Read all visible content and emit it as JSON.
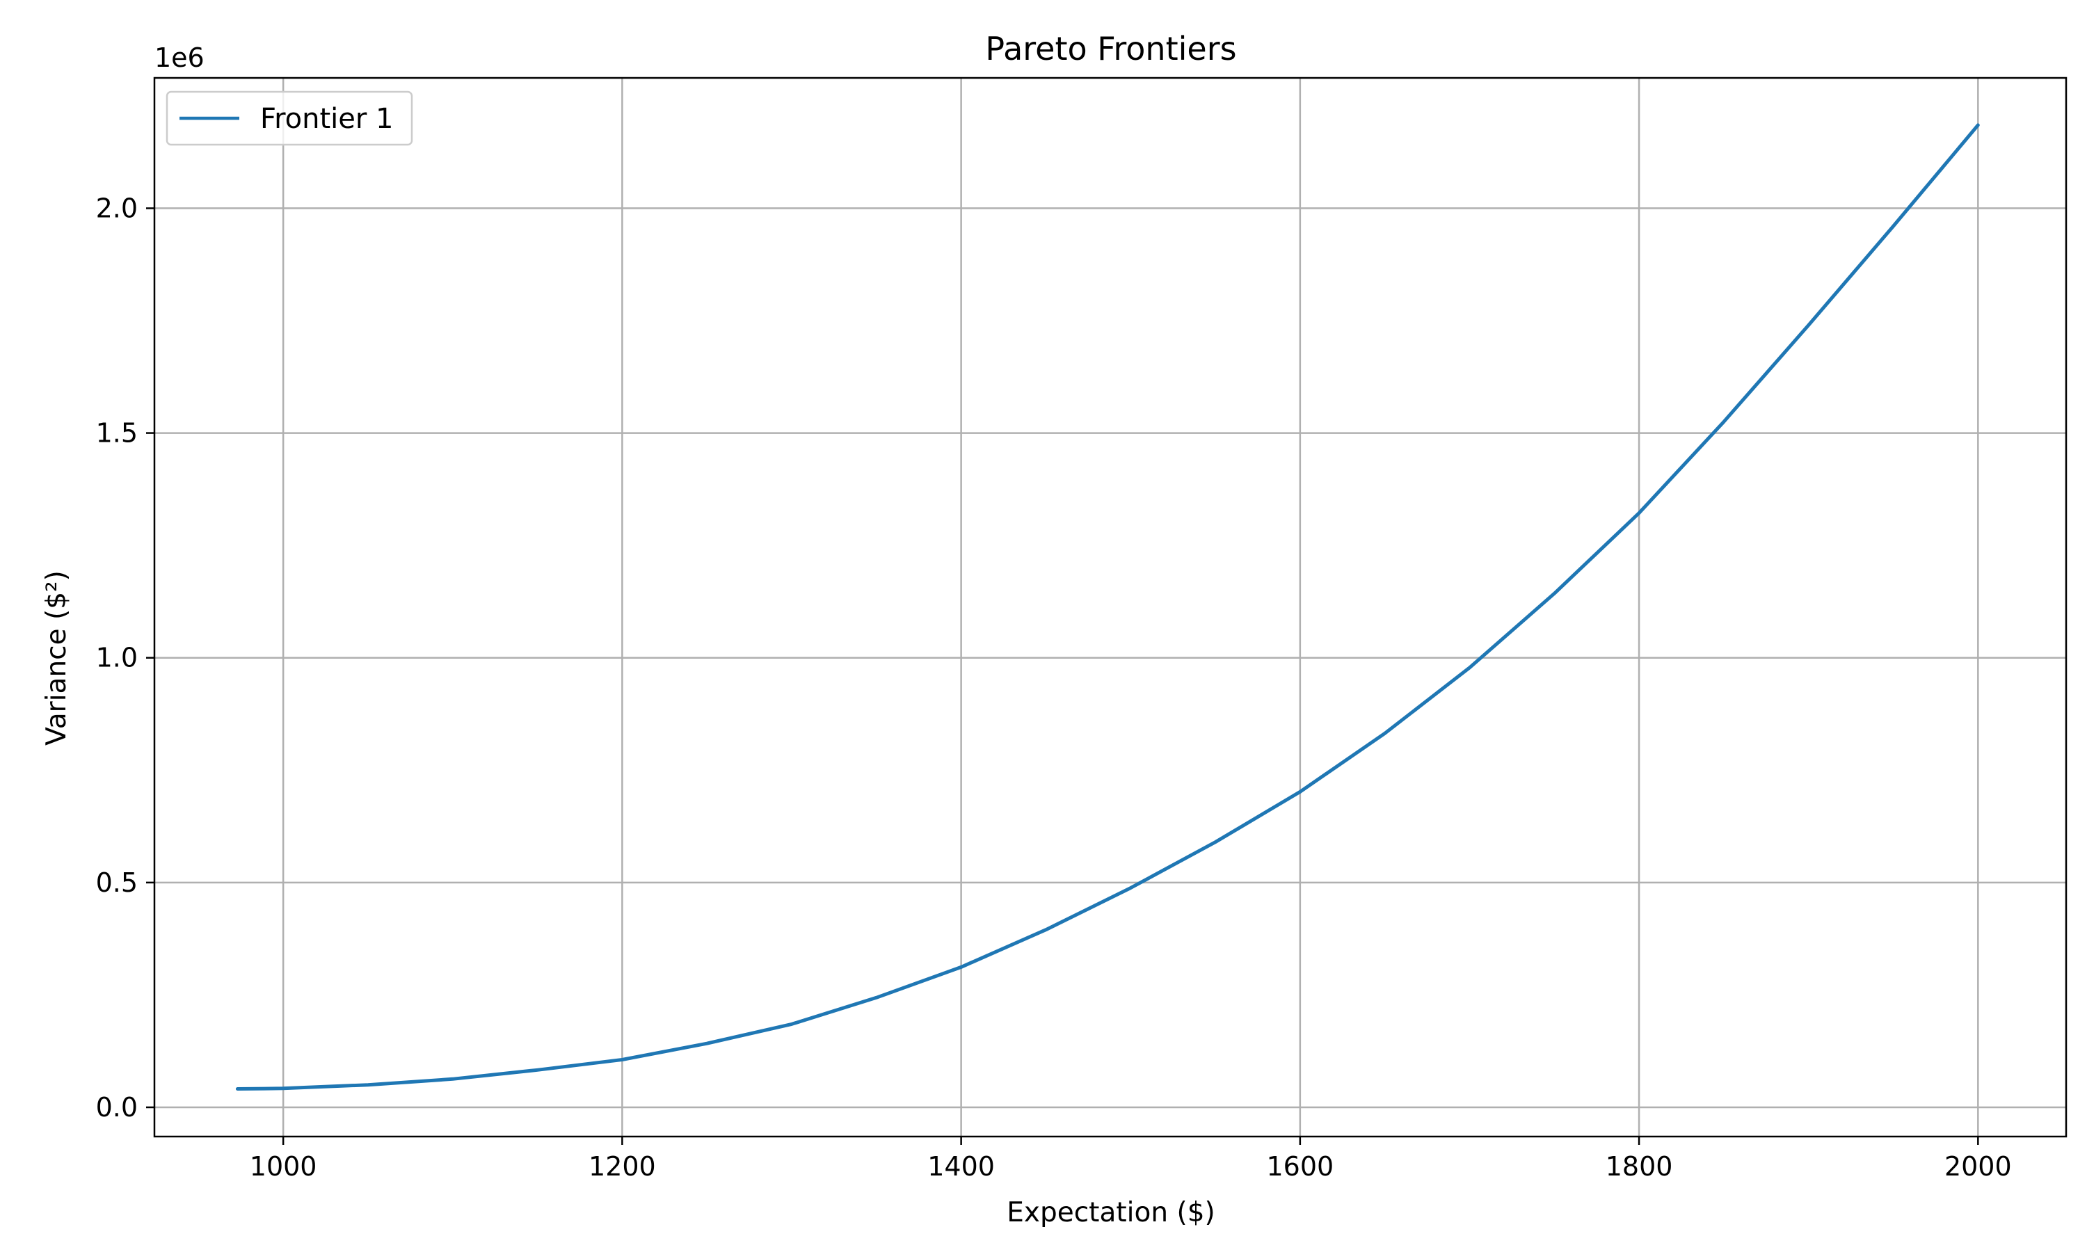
{
  "chart_data": {
    "type": "line",
    "title": "Pareto Frontiers",
    "xlabel": "Expectation ($)",
    "ylabel": "Variance ($²)",
    "y_scale_label": "1e6",
    "y_multiplier": 1000000,
    "xlim": [
      924,
      2052
    ],
    "ylim": [
      -0.065,
      2.29
    ],
    "x_ticks": [
      1000,
      1200,
      1400,
      1600,
      1800,
      2000
    ],
    "x_tick_labels": [
      "1000",
      "1200",
      "1400",
      "1600",
      "1800",
      "2000"
    ],
    "y_ticks": [
      0.0,
      0.5,
      1.0,
      1.5,
      2.0
    ],
    "y_tick_labels": [
      "0.0",
      "0.5",
      "1.0",
      "1.5",
      "2.0"
    ],
    "grid": true,
    "legend_position": "upper left",
    "series": [
      {
        "name": "Frontier 1",
        "color": "#1f77b4",
        "x": [
          973,
          1000,
          1050,
          1100,
          1150,
          1200,
          1250,
          1300,
          1350,
          1400,
          1450,
          1500,
          1550,
          1600,
          1650,
          1700,
          1750,
          1800,
          1850,
          1900,
          1950,
          2000
        ],
        "y": [
          0.041,
          0.042,
          0.05,
          0.063,
          0.083,
          0.106,
          0.142,
          0.185,
          0.244,
          0.312,
          0.395,
          0.488,
          0.59,
          0.702,
          0.832,
          0.978,
          1.143,
          1.322,
          1.525,
          1.74,
          1.96,
          2.185
        ]
      }
    ]
  }
}
